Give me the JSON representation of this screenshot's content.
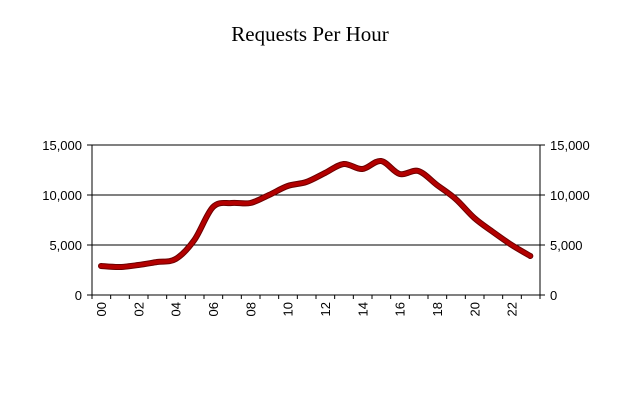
{
  "chart_data": {
    "type": "line",
    "title": "Requests Per Hour",
    "xlabel": "",
    "ylabel": "",
    "x": [
      0,
      1,
      2,
      3,
      4,
      5,
      6,
      7,
      8,
      9,
      10,
      11,
      12,
      13,
      14,
      15,
      16,
      17,
      18,
      19,
      20,
      21,
      22,
      23
    ],
    "series": [
      {
        "values": [
          2900,
          2800,
          3000,
          3300,
          3600,
          5500,
          8800,
          9200,
          9200,
          10000,
          10900,
          11300,
          12200,
          13100,
          12600,
          13400,
          12100,
          12400,
          11000,
          9600,
          7700,
          6300,
          5000,
          3900
        ]
      }
    ],
    "x_tick_labels": [
      "00",
      "02",
      "04",
      "06",
      "08",
      "10",
      "12",
      "14",
      "16",
      "18",
      "20",
      "22"
    ],
    "x_tick_hours": [
      0,
      2,
      4,
      6,
      8,
      10,
      12,
      14,
      16,
      18,
      20,
      22
    ],
    "y_tick_values": [
      0,
      5000,
      10000,
      15000
    ],
    "y_tick_labels": [
      "0",
      "5,000",
      "10,000",
      "15,000"
    ],
    "ylim": [
      0,
      15000
    ],
    "secondary_y_axis": true,
    "horizontal_grid": true,
    "line_color": "#b30000"
  }
}
